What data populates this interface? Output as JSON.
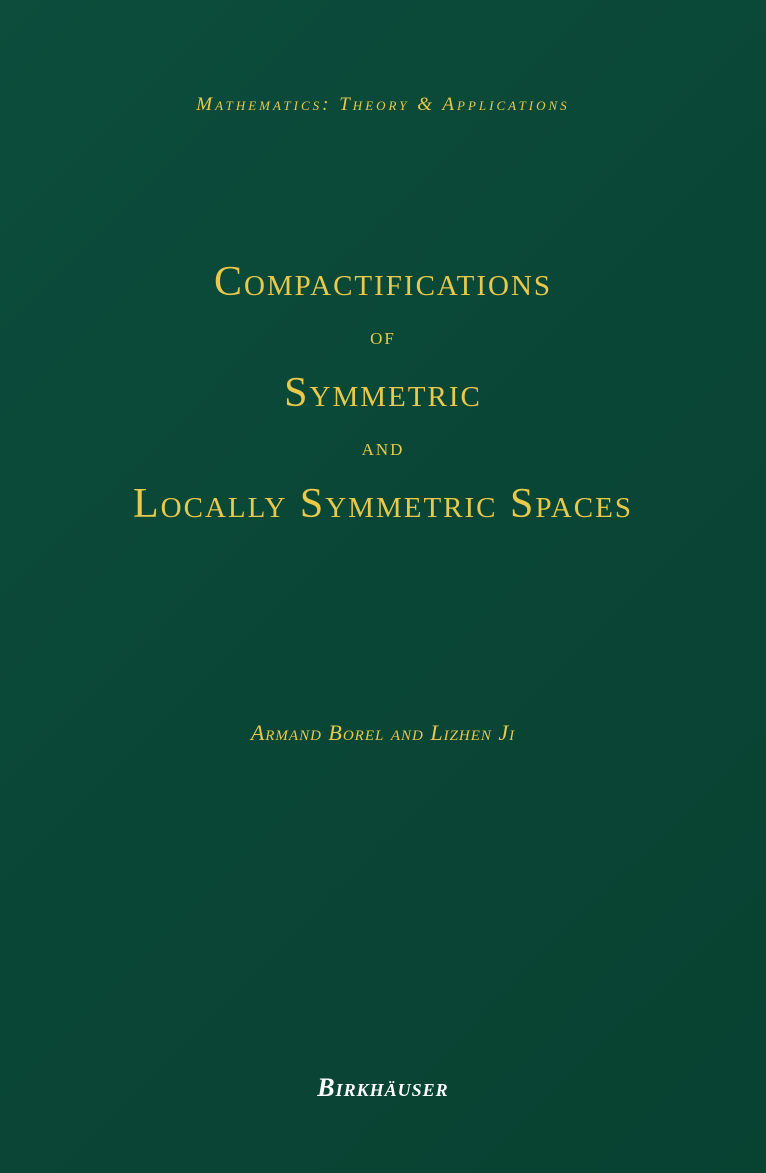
{
  "cover": {
    "background_color": "#0a4a3a",
    "series_name": "Mathematics: Theory & Applications",
    "series_color": "#e8c94b",
    "title": {
      "line1": "Compactifications",
      "line2": "of",
      "line3": "Symmetric",
      "line4": "and",
      "line5": "Locally Symmetric Spaces",
      "color": "#e8c94b",
      "large_fontsize": 42,
      "small_fontsize": 24
    },
    "authors": "Armand Borel and Lizhen Ji",
    "authors_color": "#e8c94b",
    "authors_fontsize": 22,
    "publisher": "Birkhäuser",
    "publisher_color": "#ffffff",
    "publisher_fontsize": 26
  }
}
